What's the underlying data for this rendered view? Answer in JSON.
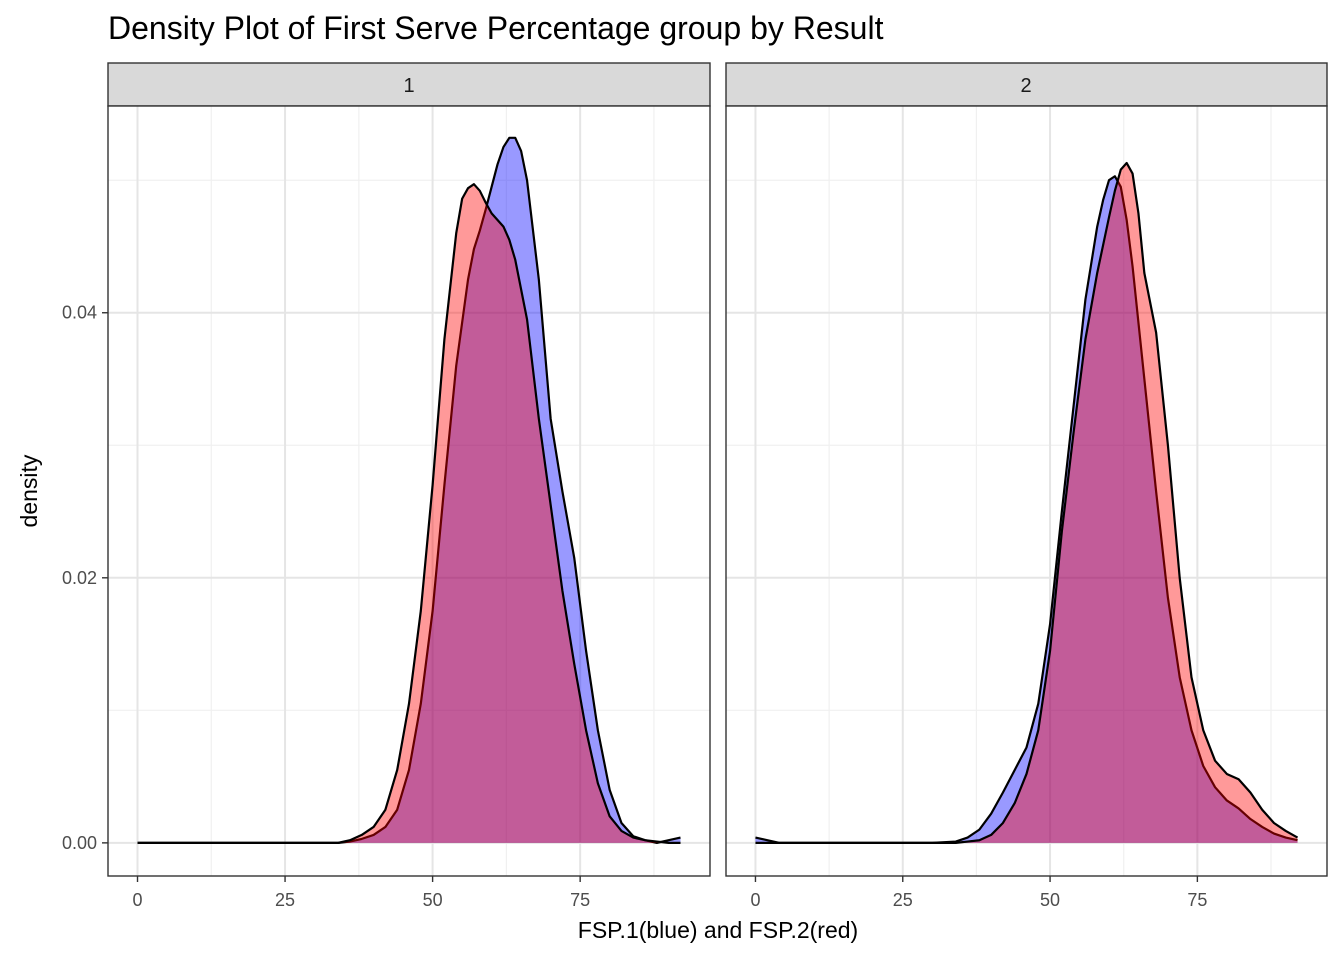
{
  "chart_data": {
    "type": "area",
    "title": "Density Plot of First Serve Percentage group by Result",
    "xlabel": "FSP.1(blue) and FSP.2(red)",
    "ylabel": "density",
    "xlim": [
      -5,
      97
    ],
    "ylim": [
      -0.0025,
      0.0556
    ],
    "x_ticks": [
      0,
      25,
      50,
      75
    ],
    "x_tick_labels": [
      "0",
      "25",
      "50",
      "75"
    ],
    "y_ticks": [
      0.0,
      0.02,
      0.04
    ],
    "y_tick_labels": [
      "0.00",
      "0.02",
      "0.04"
    ],
    "grid": true,
    "facets": [
      {
        "label": "1",
        "series": [
          {
            "color": "#0000ff",
            "fill_alpha": 0.4,
            "x": [
              0,
              10,
              20,
              30,
              34,
              36,
              38,
              40,
              42,
              44,
              46,
              48,
              50,
              52,
              54,
              56,
              57,
              58,
              59,
              60,
              61,
              62,
              63,
              64,
              65,
              66,
              68,
              70,
              72,
              74,
              76,
              78,
              80,
              82,
              84,
              86,
              88,
              90,
              92
            ],
            "y": [
              0,
              0,
              0,
              0,
              0,
              0.0001,
              0.0003,
              0.0006,
              0.0012,
              0.0025,
              0.0055,
              0.0105,
              0.0175,
              0.027,
              0.036,
              0.0425,
              0.0448,
              0.0462,
              0.0478,
              0.0495,
              0.0512,
              0.0525,
              0.0532,
              0.0532,
              0.0522,
              0.05,
              0.0425,
              0.032,
              0.0265,
              0.0215,
              0.0145,
              0.0085,
              0.004,
              0.0015,
              0.0005,
              0.0002,
              0,
              0.0002,
              0.0004
            ]
          },
          {
            "color": "#ff0000",
            "fill_alpha": 0.4,
            "x": [
              0,
              10,
              20,
              30,
              34,
              36,
              38,
              40,
              42,
              44,
              46,
              48,
              50,
              52,
              54,
              55,
              56,
              57,
              58,
              59,
              60,
              61,
              62,
              63,
              64,
              66,
              68,
              70,
              72,
              74,
              76,
              78,
              80,
              82,
              84,
              86,
              88,
              90,
              92
            ],
            "y": [
              0,
              0,
              0,
              0,
              0,
              0.0002,
              0.0006,
              0.0012,
              0.0025,
              0.0055,
              0.0105,
              0.0175,
              0.027,
              0.038,
              0.046,
              0.0486,
              0.0494,
              0.0497,
              0.0492,
              0.0483,
              0.0475,
              0.047,
              0.0465,
              0.0455,
              0.044,
              0.0395,
              0.032,
              0.0255,
              0.019,
              0.0135,
              0.0085,
              0.0045,
              0.002,
              0.0009,
              0.0004,
              0.0002,
              0.0001,
              0,
              0
            ]
          }
        ]
      },
      {
        "label": "2",
        "series": [
          {
            "color": "#0000ff",
            "fill_alpha": 0.4,
            "x": [
              0,
              2,
              4,
              6,
              10,
              20,
              30,
              34,
              36,
              38,
              40,
              42,
              44,
              46,
              48,
              50,
              52,
              54,
              56,
              58,
              59,
              60,
              61,
              62,
              63,
              64,
              66,
              68,
              70,
              72,
              74,
              76,
              78,
              80,
              82,
              84,
              86,
              88,
              90,
              92
            ],
            "y": [
              0.0004,
              0.0002,
              0,
              0,
              0,
              0,
              0,
              0.0001,
              0.0004,
              0.001,
              0.0022,
              0.0038,
              0.0055,
              0.0072,
              0.0105,
              0.0165,
              0.025,
              0.033,
              0.041,
              0.0465,
              0.0485,
              0.05,
              0.0503,
              0.0495,
              0.047,
              0.0435,
              0.035,
              0.0265,
              0.0185,
              0.0125,
              0.0085,
              0.0058,
              0.0042,
              0.0032,
              0.0026,
              0.0018,
              0.0012,
              0.0007,
              0.0004,
              0.0002
            ]
          },
          {
            "color": "#ff0000",
            "fill_alpha": 0.4,
            "x": [
              0,
              2,
              4,
              10,
              20,
              30,
              34,
              36,
              38,
              40,
              42,
              44,
              46,
              48,
              50,
              52,
              54,
              56,
              58,
              60,
              61,
              62,
              63,
              64,
              65,
              66,
              68,
              70,
              72,
              74,
              76,
              78,
              80,
              82,
              84,
              86,
              88,
              90,
              92
            ],
            "y": [
              0,
              0,
              0,
              0,
              0,
              0,
              0,
              0.0001,
              0.0002,
              0.0006,
              0.0015,
              0.003,
              0.0052,
              0.0085,
              0.0145,
              0.0235,
              0.031,
              0.038,
              0.043,
              0.0472,
              0.0492,
              0.0508,
              0.0513,
              0.0505,
              0.0475,
              0.043,
              0.0385,
              0.03,
              0.02,
              0.0125,
              0.0085,
              0.0062,
              0.0052,
              0.0048,
              0.0038,
              0.0025,
              0.0015,
              0.0009,
              0.0004
            ]
          }
        ]
      }
    ]
  }
}
